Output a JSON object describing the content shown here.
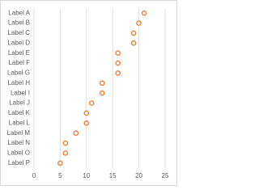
{
  "chart_data": {
    "type": "dot",
    "categories": [
      "Label A",
      "Label B",
      "Label C",
      "Label D",
      "Label E",
      "Label F",
      "Label G",
      "Label H",
      "Label I",
      "Label J",
      "Label K",
      "Label L",
      "Label M",
      "Label N",
      "Label O",
      "Label P"
    ],
    "values": [
      21,
      20,
      19,
      19,
      16,
      16,
      16,
      13,
      13,
      11,
      10,
      10,
      8,
      6,
      6,
      5
    ],
    "color": "#ed7d31",
    "xlim": [
      0,
      25
    ],
    "xticks": [
      0,
      5,
      10,
      15,
      20,
      25
    ],
    "grid": true
  }
}
